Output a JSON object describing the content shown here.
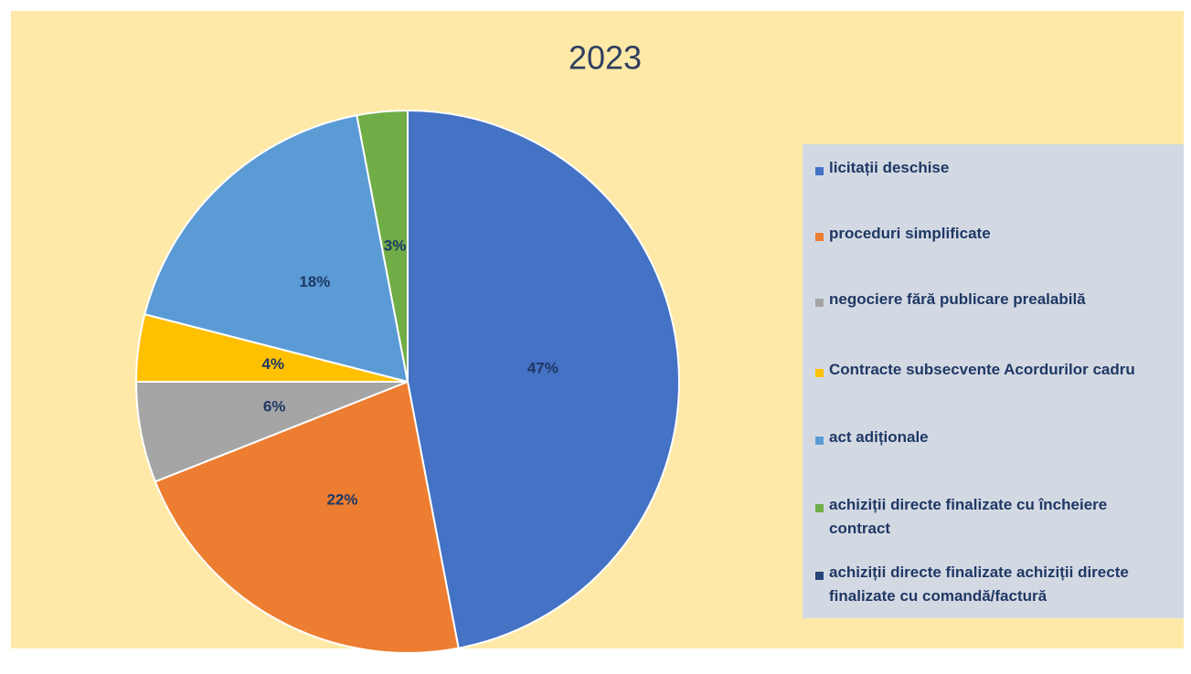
{
  "chart_data": {
    "type": "pie",
    "title": "2023",
    "categories": [
      "licitații deschise",
      "proceduri simplificate",
      "negociere fără publicare prealabilă",
      "Contracte subsecvente Acordurilor cadru",
      "act adiționale",
      "achiziții directe finalizate cu încheiere contract",
      "achiziții directe finalizate achiziții directe finalizate cu comandă/factură"
    ],
    "values": [
      47,
      22,
      6,
      4,
      18,
      3,
      0
    ],
    "value_labels": [
      "47%",
      "22%",
      "6%",
      "4%",
      "18%",
      "3%",
      null
    ],
    "colors": [
      "#4472c4",
      "#ed7d31",
      "#a5a5a5",
      "#ffc000",
      "#5b9bd5",
      "#70ad47",
      "#264478"
    ],
    "legend": "right"
  }
}
